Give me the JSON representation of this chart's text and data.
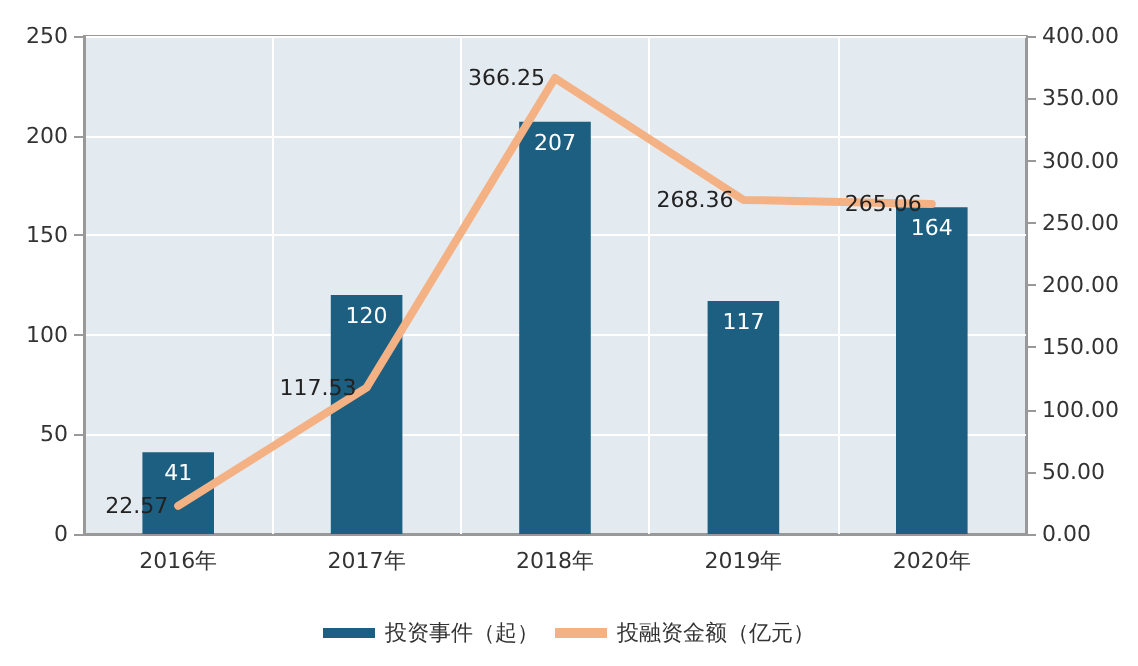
{
  "chart_data": {
    "type": "bar",
    "categories": [
      "2016年",
      "2017年",
      "2018年",
      "2019年",
      "2020年"
    ],
    "series": [
      {
        "name": "投资事件（起）",
        "color": "#1d5f80",
        "values": [
          41,
          120,
          207,
          117,
          164
        ]
      },
      {
        "name": "投融资金额（亿元）",
        "type": "line",
        "axis": "y2",
        "color": "#f4b183",
        "values": [
          22.57,
          117.53,
          366.25,
          268.36,
          265.06
        ]
      }
    ],
    "ylim": [
      0,
      250
    ],
    "yticks": [
      0,
      50,
      100,
      150,
      200,
      250
    ],
    "y2lim": [
      0,
      400
    ],
    "y2ticks": [
      {
        "value": 0,
        "label": "0.00"
      },
      {
        "value": 50,
        "label": "50.00"
      },
      {
        "value": 100,
        "label": "100.00"
      },
      {
        "value": 150,
        "label": "150.00"
      },
      {
        "value": 200,
        "label": "200.00"
      },
      {
        "value": 250,
        "label": "250.00"
      },
      {
        "value": 300,
        "label": "300.00"
      },
      {
        "value": 350,
        "label": "350.00"
      },
      {
        "value": 400,
        "label": "400.00"
      }
    ],
    "grid": true,
    "legend": "bottom",
    "data_labels": true,
    "marker": "none",
    "line_style": "solid"
  }
}
